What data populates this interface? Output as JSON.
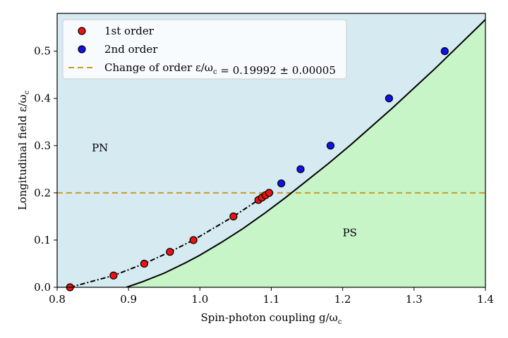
{
  "chart_data": {
    "type": "scatter",
    "xlabel": "Spin-photon coupling g/ω_c",
    "ylabel": "Longitudinal field ε/ω_c",
    "xlim": [
      0.8,
      1.4
    ],
    "ylim": [
      0.0,
      0.58
    ],
    "x_ticks": [
      0.8,
      0.9,
      1.0,
      1.1,
      1.2,
      1.3,
      1.4
    ],
    "x_tick_labels": [
      "0.8",
      "0.9",
      "1.0",
      "1.1",
      "1.2",
      "1.3",
      "1.4"
    ],
    "y_ticks": [
      0.0,
      0.1,
      0.2,
      0.3,
      0.4,
      0.5
    ],
    "y_tick_labels": [
      "0.0",
      "0.1",
      "0.2",
      "0.3",
      "0.4",
      "0.5"
    ],
    "regions": [
      {
        "name": "PN",
        "label": "PN",
        "color": "#d6eaf2",
        "label_at": [
          0.86,
          0.288
        ]
      },
      {
        "name": "PS",
        "label": "PS",
        "color": "#c8f5c8",
        "label_at": [
          1.21,
          0.108
        ]
      }
    ],
    "series": [
      {
        "name": "1st order",
        "kind": "markers",
        "color": "#ee1111",
        "points": [
          [
            0.818,
            0.0
          ],
          [
            0.879,
            0.025
          ],
          [
            0.922,
            0.05
          ],
          [
            0.958,
            0.075
          ],
          [
            0.991,
            0.1
          ],
          [
            1.047,
            0.15
          ],
          [
            1.082,
            0.185
          ],
          [
            1.087,
            0.19
          ],
          [
            1.092,
            0.195
          ],
          [
            1.097,
            0.2
          ]
        ]
      },
      {
        "name": "2nd order",
        "kind": "markers",
        "color": "#1111ee",
        "points": [
          [
            1.114,
            0.22
          ],
          [
            1.141,
            0.25
          ],
          [
            1.183,
            0.3
          ],
          [
            1.265,
            0.4
          ],
          [
            1.343,
            0.5
          ]
        ]
      },
      {
        "name": "first-order dashed boundary",
        "kind": "line",
        "style": "dashdot",
        "color": "#000000",
        "points": [
          [
            0.818,
            0.0
          ],
          [
            0.879,
            0.025
          ],
          [
            0.922,
            0.05
          ],
          [
            0.958,
            0.075
          ],
          [
            0.991,
            0.1
          ],
          [
            1.047,
            0.15
          ],
          [
            1.082,
            0.185
          ],
          [
            1.097,
            0.2
          ]
        ]
      },
      {
        "name": "phase boundary",
        "kind": "line",
        "style": "solid",
        "color": "#000000",
        "points": [
          [
            0.897,
            0.0
          ],
          [
            0.92,
            0.012
          ],
          [
            0.95,
            0.03
          ],
          [
            0.98,
            0.052
          ],
          [
            1.0,
            0.068
          ],
          [
            1.03,
            0.095
          ],
          [
            1.06,
            0.124
          ],
          [
            1.09,
            0.156
          ],
          [
            1.12,
            0.19
          ],
          [
            1.15,
            0.226
          ],
          [
            1.18,
            0.262
          ],
          [
            1.21,
            0.3
          ],
          [
            1.24,
            0.34
          ],
          [
            1.27,
            0.38
          ],
          [
            1.3,
            0.422
          ],
          [
            1.33,
            0.464
          ],
          [
            1.36,
            0.508
          ],
          [
            1.39,
            0.552
          ],
          [
            1.4,
            0.567
          ]
        ]
      }
    ],
    "hline": {
      "name": "Change of order",
      "y": 0.19992,
      "color": "#cc9922",
      "style": "dashed"
    },
    "legend": {
      "position": "top-left",
      "entries": [
        {
          "label": "1st order",
          "type": "marker",
          "color": "#ee1111"
        },
        {
          "label": "2nd order",
          "type": "marker",
          "color": "#1111ee"
        },
        {
          "label": "Change of order ε/ω_c = 0.19992 ± 0.00005",
          "type": "dashed-line",
          "color": "#cc9922"
        }
      ]
    }
  }
}
